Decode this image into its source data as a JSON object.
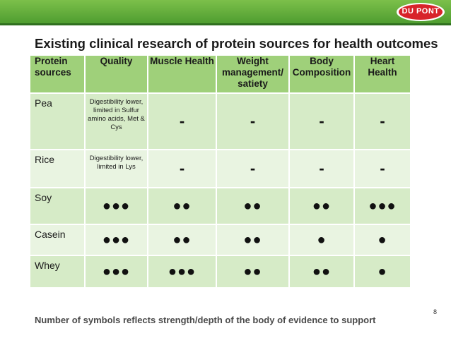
{
  "brand": "DU PONT",
  "title": "Existing clinical research of protein sources for health outcomes",
  "table": {
    "headers": [
      "Protein sources",
      "Quality",
      "Muscle Health",
      "Weight management/ satiety",
      "Body Composition",
      "Heart Health"
    ],
    "rows": [
      {
        "source": "Pea",
        "quality": "Digestibility lower, limited in Sulfur amino acids, Met & Cys",
        "muscle": "-",
        "weight": "-",
        "body": "-",
        "heart": "-"
      },
      {
        "source": "Rice",
        "quality": "Digestibility lower, limited in Lys",
        "muscle": "-",
        "weight": "-",
        "body": "-",
        "heart": "-"
      },
      {
        "source": "Soy",
        "quality": "●●●",
        "muscle": "●●",
        "weight": "●●",
        "body": "●●",
        "heart": "●●●"
      },
      {
        "source": "Casein",
        "quality": "●●●",
        "muscle": "●●",
        "weight": "●●",
        "body": "●",
        "heart": "●"
      },
      {
        "source": "Whey",
        "quality": "●●●",
        "muscle": "●●●",
        "weight": "●●",
        "body": "●●",
        "heart": "●"
      }
    ]
  },
  "page_number": "8",
  "footer": "Number of symbols reflects strength/depth of the body of evidence to support",
  "colors": {
    "header_green": "#9fd07a",
    "row_green": "#d6ebc7",
    "row_green_alt": "#e9f4e1",
    "bar_green": "#4b9a2e",
    "logo_red": "#d8232a"
  }
}
